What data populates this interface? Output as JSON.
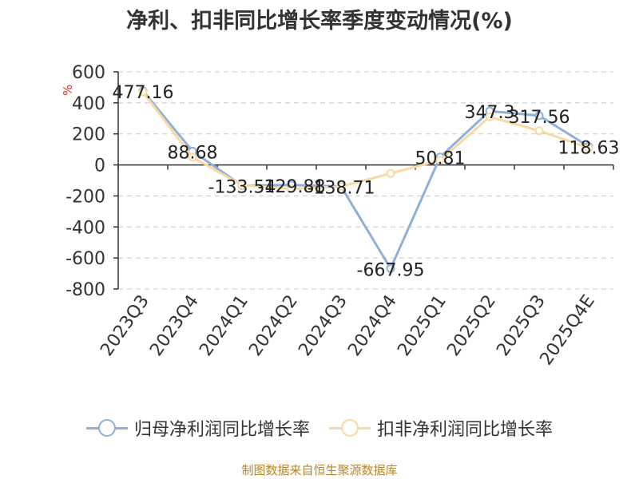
{
  "chart_data": {
    "type": "line",
    "title": "净利、扣非同比增长率季度变动情况(%)",
    "ylabel": "%",
    "categories": [
      "2023Q3",
      "2023Q4",
      "2024Q1",
      "2024Q2",
      "2024Q3",
      "2024Q4",
      "2025Q1",
      "2025Q2",
      "2025Q3",
      "2025Q4E"
    ],
    "ylim": [
      -800,
      600
    ],
    "yticks": [
      600,
      400,
      200,
      0,
      -200,
      -400,
      -600,
      -800
    ],
    "grid": true,
    "legend_position": "bottom",
    "series": [
      {
        "name": "归母净利润同比增长率",
        "color": "#8fb0d9",
        "values": [
          477.16,
          88.68,
          -133.54,
          -129.88,
          -138.71,
          -667.95,
          50.81,
          347.3,
          317.56,
          118.63
        ],
        "labels": [
          "477.16",
          "88.68",
          "-133.54",
          "-129.88",
          "-138.71",
          "-667.95",
          "50.81",
          "347.3",
          "317.56",
          "118.63"
        ]
      },
      {
        "name": "扣非净利润同比增长率",
        "color": "#f8d9a3",
        "values": [
          470,
          50,
          -130,
          -155,
          -140,
          -55,
          30,
          310,
          220,
          110
        ]
      }
    ]
  },
  "source": "制图数据来自恒生聚源数据库"
}
